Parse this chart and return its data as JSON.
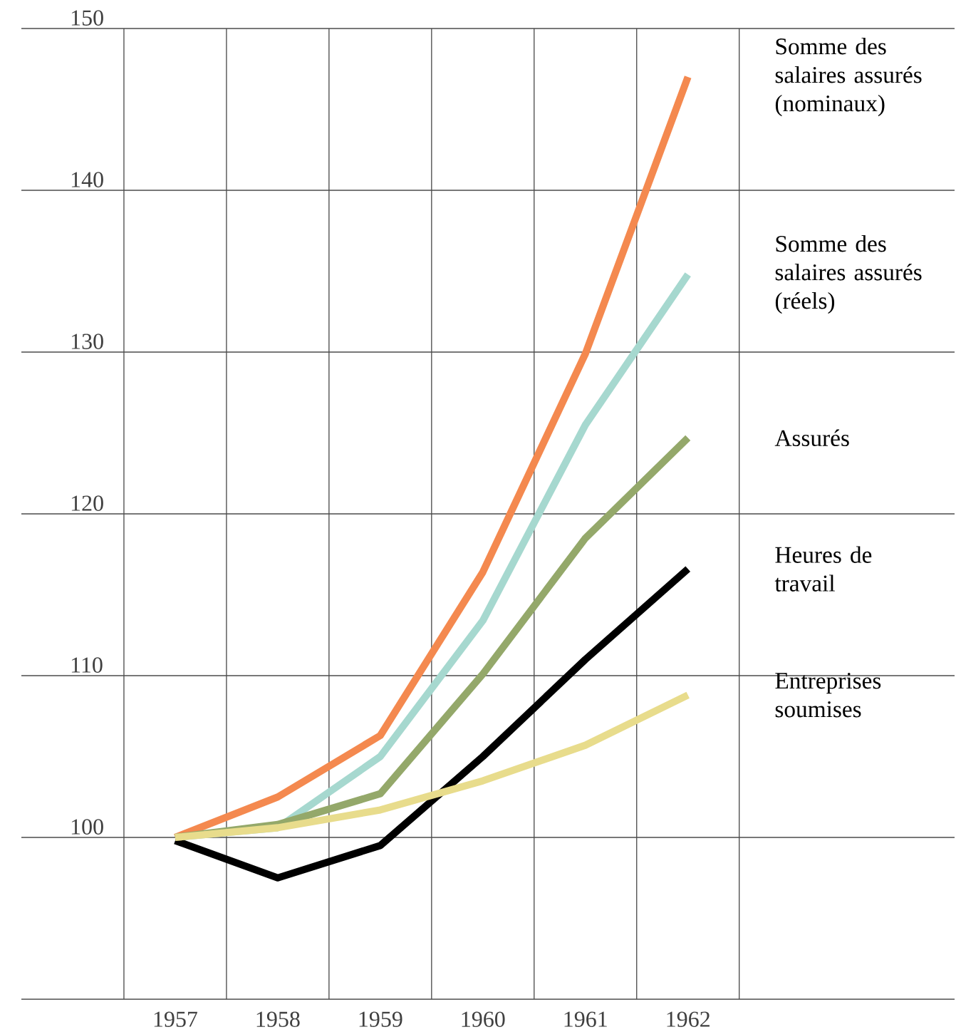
{
  "chart_data": {
    "type": "line",
    "categories": [
      "1957",
      "1958",
      "1959",
      "1960",
      "1961",
      "1962"
    ],
    "series": [
      {
        "name": "Somme des salaires assurés (nominaux)",
        "color": "#f4894f",
        "values": [
          100,
          102.5,
          106.3,
          116.4,
          129.9,
          147
        ]
      },
      {
        "name": "Somme des salaires assurés (réels)",
        "color": "#a6d8cf",
        "values": [
          100,
          100.6,
          105,
          113.4,
          125.5,
          134.8
        ]
      },
      {
        "name": "Assurés",
        "color": "#94a86a",
        "values": [
          100,
          100.8,
          102.7,
          110.1,
          118.5,
          124.7
        ]
      },
      {
        "name": "Heures de travail",
        "color": "#000000",
        "values": [
          99.8,
          97.5,
          99.5,
          105,
          111,
          116.6
        ]
      },
      {
        "name": "Entreprises soumises",
        "color": "#e8dc8c",
        "values": [
          100,
          100.6,
          101.7,
          103.5,
          105.7,
          108.8
        ]
      }
    ],
    "ylim": [
      90,
      150
    ],
    "yticks": [
      100,
      110,
      120,
      130,
      140,
      150
    ],
    "grid": true,
    "legend": false,
    "marker": "none",
    "line_style": "solid"
  }
}
